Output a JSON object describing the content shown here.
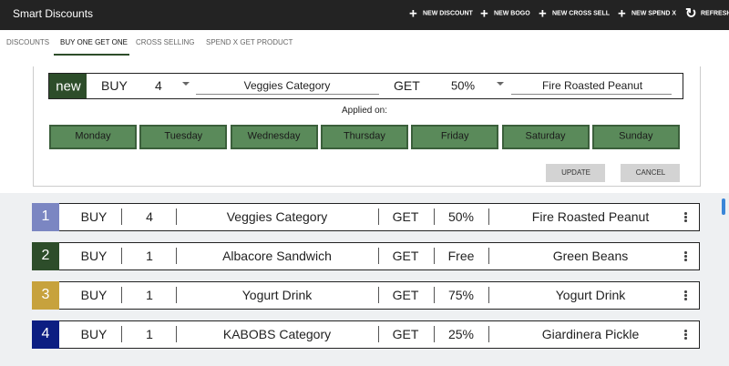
{
  "header": {
    "title": "Smart Discounts",
    "actions": [
      "NEW DISCOUNT",
      "NEW BOGO",
      "NEW CROSS SELL",
      "NEW SPEND X",
      "REFRESH"
    ]
  },
  "tabs": [
    "DISCOUNTS",
    "BUY ONE GET ONE",
    "CROSS SELLING",
    "SPEND X GET PRODUCT"
  ],
  "editor": {
    "badge": "new",
    "buy_label": "BUY",
    "quantity": 4,
    "product": "Veggies Category",
    "get_label": "GET",
    "discount": "50%",
    "get_product": "Fire Roasted Peanut",
    "applied_on_label": "Applied on:",
    "days": [
      "Monday",
      "Tuesday",
      "Wednesday",
      "Thursday",
      "Friday",
      "Saturday",
      "Sunday"
    ],
    "buttons": [
      "UPDATE",
      "CANCEL"
    ]
  },
  "rows": [
    {
      "index": 1,
      "badge_color": "#7b86c2",
      "buy_label": "BUY",
      "quantity": 4,
      "product": "Veggies Category",
      "get_label": "GET",
      "discount": "50%",
      "get_product": "Fire Roasted Peanut"
    },
    {
      "index": 2,
      "badge_color": "#2d4d2a",
      "buy_label": "BUY",
      "quantity": 1,
      "product": "Albacore Sandwich",
      "get_label": "GET",
      "discount": "Free",
      "get_product": "Green Beans"
    },
    {
      "index": 3,
      "badge_color": "#c7a23d",
      "buy_label": "BUY",
      "quantity": 1,
      "product": "Yogurt Drink",
      "get_label": "GET",
      "discount": "75%",
      "get_product": "Yogurt Drink"
    },
    {
      "index": 4,
      "badge_color": "#0c1e82",
      "buy_label": "BUY",
      "quantity": 1,
      "product": "KABOBS Category",
      "get_label": "GET",
      "discount": "25%",
      "get_product": "Giardinera Pickle"
    }
  ]
}
